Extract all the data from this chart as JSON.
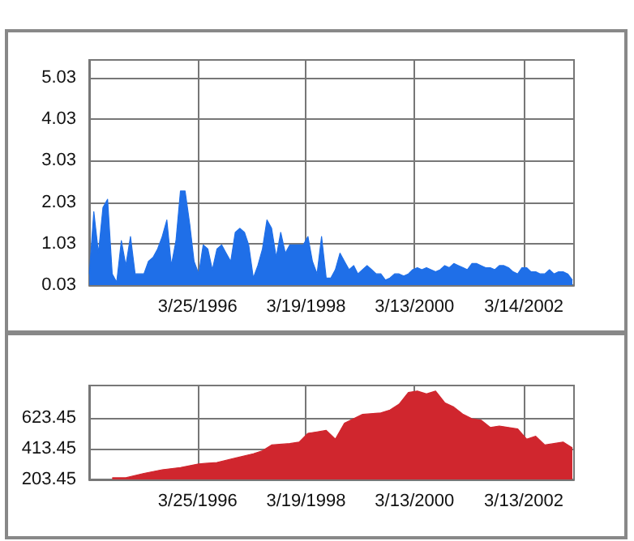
{
  "chart_data": [
    {
      "type": "area",
      "x": [
        "1994-04",
        "1994-05",
        "1994-06",
        "1994-07",
        "1994-08",
        "1994-09",
        "1994-10",
        "1994-11",
        "1994-12",
        "1995-01",
        "1995-02",
        "1995-03",
        "1995-04",
        "1995-05",
        "1995-06",
        "1995-07",
        "1995-08",
        "1995-09",
        "1995-10",
        "1995-11",
        "1995-12",
        "1996-01",
        "1996-02",
        "1996-03",
        "1996-04",
        "1996-05",
        "1996-06",
        "1996-07",
        "1996-08",
        "1996-09",
        "1996-10",
        "1996-11",
        "1996-12",
        "1997-01",
        "1997-02",
        "1997-03",
        "1997-04",
        "1997-05",
        "1997-06",
        "1997-07",
        "1997-08",
        "1997-09",
        "1997-10",
        "1997-11",
        "1997-12",
        "1998-01",
        "1998-02",
        "1998-03",
        "1998-04",
        "1998-05",
        "1998-06",
        "1998-07",
        "1998-08",
        "1998-09",
        "1998-10",
        "1998-11",
        "1998-12",
        "1999-01",
        "1999-02",
        "1999-03",
        "1999-04",
        "1999-05",
        "1999-06",
        "1999-07",
        "1999-08",
        "1999-09",
        "1999-10",
        "1999-11",
        "1999-12",
        "2000-01",
        "2000-02",
        "2000-03",
        "2000-04",
        "2000-05",
        "2000-06",
        "2000-07",
        "2000-08",
        "2000-09",
        "2000-10",
        "2000-11",
        "2000-12",
        "2001-01",
        "2001-02",
        "2001-03",
        "2001-04",
        "2001-05",
        "2001-06",
        "2001-07",
        "2001-08",
        "2001-09",
        "2001-10",
        "2001-11",
        "2001-12",
        "2002-01",
        "2002-02",
        "2002-03",
        "2002-04",
        "2002-05",
        "2002-06",
        "2002-07",
        "2002-08",
        "2002-09",
        "2002-10",
        "2002-11",
        "2002-12",
        "2003-01",
        "2003-02"
      ],
      "series": [
        {
          "color": "#1f6fe8",
          "values": [
            0.3,
            1.8,
            0.8,
            1.9,
            2.1,
            0.3,
            0.1,
            1.1,
            0.5,
            1.2,
            0.3,
            0.3,
            0.3,
            0.6,
            0.7,
            0.9,
            1.2,
            1.6,
            0.5,
            1.1,
            2.3,
            2.3,
            1.5,
            0.6,
            0.3,
            1.0,
            0.9,
            0.4,
            0.9,
            1.0,
            0.8,
            0.6,
            1.3,
            1.4,
            1.3,
            1.0,
            0.2,
            0.5,
            0.9,
            1.6,
            1.4,
            0.7,
            1.3,
            0.8,
            1.0,
            1.0,
            1.0,
            1.0,
            1.2,
            0.6,
            0.3,
            1.2,
            0.2,
            0.2,
            0.4,
            0.8,
            0.6,
            0.4,
            0.5,
            0.3,
            0.4,
            0.5,
            0.4,
            0.3,
            0.3,
            0.15,
            0.2,
            0.3,
            0.3,
            0.25,
            0.3,
            0.4,
            0.45,
            0.4,
            0.45,
            0.4,
            0.35,
            0.4,
            0.5,
            0.45,
            0.55,
            0.5,
            0.45,
            0.4,
            0.55,
            0.55,
            0.5,
            0.45,
            0.45,
            0.4,
            0.5,
            0.5,
            0.45,
            0.35,
            0.3,
            0.45,
            0.45,
            0.35,
            0.35,
            0.3,
            0.3,
            0.4,
            0.3,
            0.35,
            0.35,
            0.3,
            0.15
          ]
        }
      ],
      "xlim": [
        "1994-03-31",
        "2003-02-12"
      ],
      "xticks": [
        {
          "value": "1996-03-25",
          "label": "3/25/1996"
        },
        {
          "value": "1998-03-19",
          "label": "3/19/1998"
        },
        {
          "value": "2000-03-13",
          "label": "3/13/2000"
        },
        {
          "value": "2002-03-14",
          "label": "3/14/2002"
        }
      ],
      "ylim": [
        0.03,
        5.46
      ],
      "yticks": [
        0.03,
        1.03,
        2.03,
        3.03,
        4.03,
        5.03
      ],
      "grid": true
    },
    {
      "type": "area",
      "x": [
        "1994-09",
        "1994-12",
        "1995-04",
        "1995-08",
        "1995-12",
        "1996-04",
        "1996-08",
        "1996-12",
        "1997-04",
        "1997-06",
        "1997-08",
        "1997-12",
        "1998-02",
        "1998-04",
        "1998-06",
        "1998-08",
        "1998-10",
        "1998-12",
        "1999-04",
        "1999-08",
        "1999-10",
        "1999-12",
        "2000-02",
        "2000-04",
        "2000-06",
        "2000-08",
        "2000-10",
        "2000-12",
        "2001-02",
        "2001-04",
        "2001-06",
        "2001-08",
        "2001-10",
        "2001-12",
        "2002-02",
        "2002-04",
        "2002-06",
        "2002-08",
        "2002-10",
        "2002-12",
        "2003-02"
      ],
      "series": [
        {
          "color": "#d0262e",
          "values": [
            215,
            215,
            245,
            270,
            285,
            310,
            320,
            350,
            380,
            400,
            440,
            450,
            460,
            520,
            530,
            540,
            480,
            590,
            650,
            660,
            680,
            720,
            800,
            810,
            790,
            810,
            730,
            700,
            650,
            620,
            610,
            560,
            570,
            560,
            550,
            480,
            500,
            440,
            450,
            460,
            420
          ]
        }
      ],
      "xlim": [
        "1994-03-31",
        "2003-02-12"
      ],
      "xticks": [
        {
          "value": "1996-03-25",
          "label": "3/25/1996"
        },
        {
          "value": "1998-03-19",
          "label": "3/19/1998"
        },
        {
          "value": "2000-03-13",
          "label": "3/13/2000"
        },
        {
          "value": "2002-03-13",
          "label": "3/13/2002"
        }
      ],
      "ylim": [
        203.45,
        848
      ],
      "yticks": [
        203.45,
        413.45,
        623.45
      ],
      "grid": true
    }
  ]
}
